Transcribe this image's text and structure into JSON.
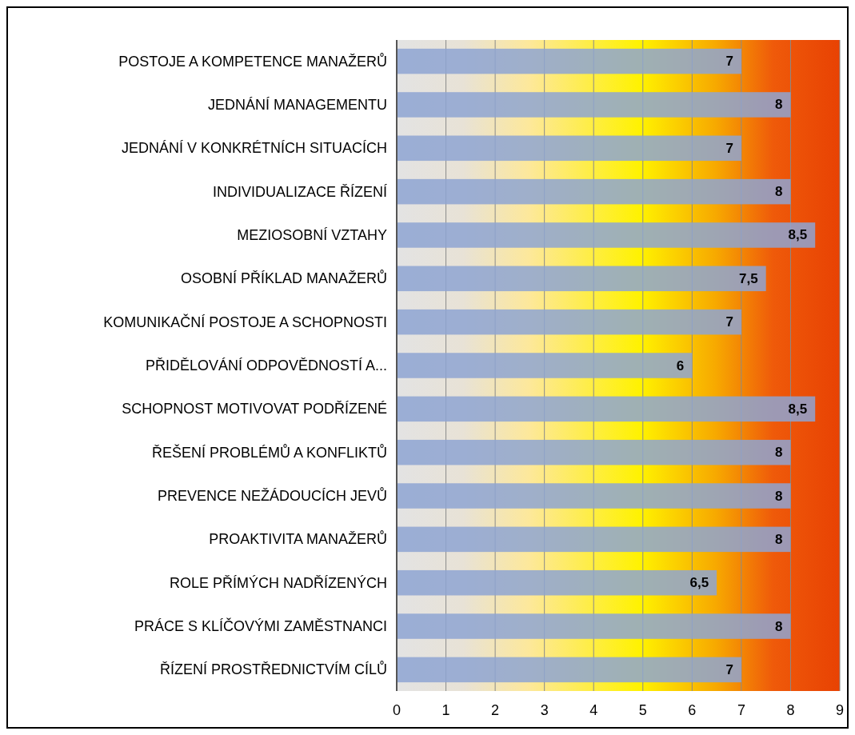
{
  "chart_data": {
    "type": "bar",
    "orientation": "horizontal",
    "categories": [
      "POSTOJE A KOMPETENCE MANAŽERŮ",
      "JEDNÁNÍ MANAGEMENTU",
      "JEDNÁNÍ V KONKRÉTNÍCH SITUACÍCH",
      "INDIVIDUALIZACE ŘÍZENÍ",
      "MEZIOSOBNÍ VZTAHY",
      "OSOBNÍ PŘÍKLAD MANAŽERŮ",
      "KOMUNIKAČNÍ POSTOJE A SCHOPNOSTI",
      "PŘIDĚLOVÁNÍ ODPOVĚDNOSTÍ A...",
      "SCHOPNOST MOTIVOVAT PODŘÍZENÉ",
      "ŘEŠENÍ PROBLÉMŮ A KONFLIKTŮ",
      "PREVENCE NEŽÁDOUCÍCH JEVŮ",
      "PROAKTIVITA MANAŽERŮ",
      "ROLE PŘÍMÝCH NADŘÍZENÝCH",
      "PRÁCE S KLÍČOVÝMI ZAMĚSTNANCI",
      "ŘÍZENÍ PROSTŘEDNICTVÍM CÍLŮ"
    ],
    "values": [
      7,
      8,
      7,
      8,
      8.5,
      7.5,
      7,
      6,
      8.5,
      8,
      8,
      8,
      6.5,
      8,
      7
    ],
    "value_labels": [
      "7",
      "8",
      "7",
      "8",
      "8,5",
      "7,5",
      "7",
      "6",
      "8,5",
      "8",
      "8",
      "8",
      "6,5",
      "8",
      "7"
    ],
    "color": "#8ea5d2",
    "xlim": [
      0,
      9
    ],
    "xticks": [
      0,
      1,
      2,
      3,
      4,
      5,
      6,
      7,
      8,
      9
    ],
    "grid": "x"
  }
}
